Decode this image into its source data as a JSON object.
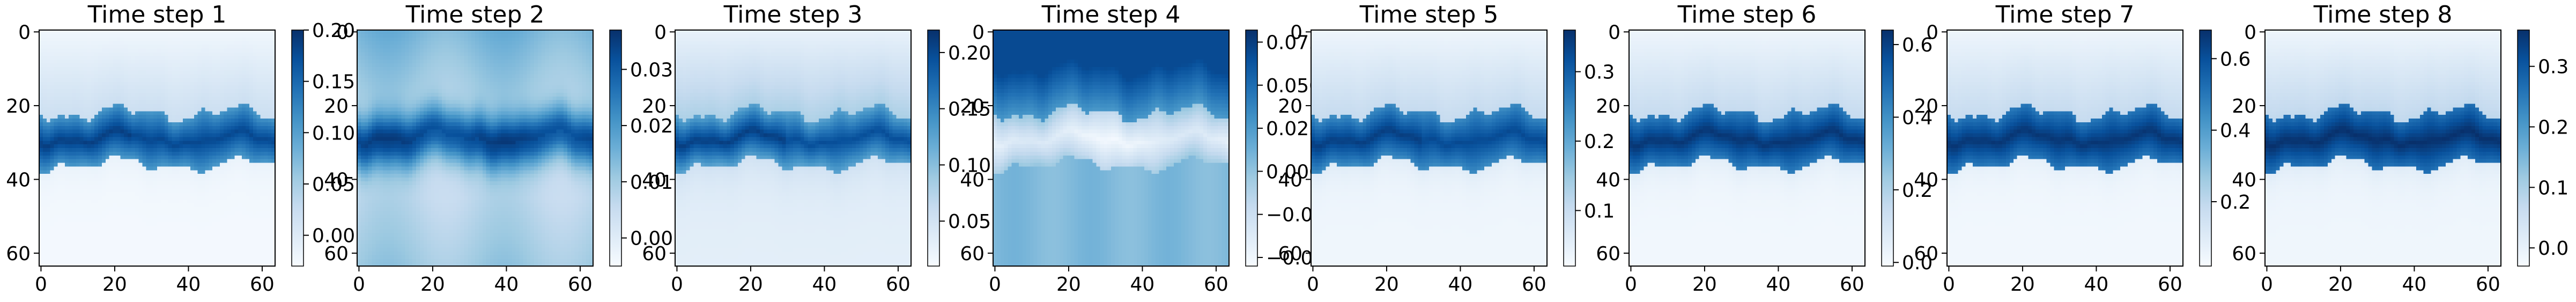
{
  "chart_data": [
    {
      "type": "heatmap",
      "title": "Time step 1",
      "xticks": [
        0,
        20,
        40,
        60
      ],
      "yticks": [
        0,
        20,
        40,
        60
      ],
      "x_range": [
        0,
        63
      ],
      "y_range": [
        0,
        63
      ],
      "colormap": "Blues",
      "colorbar": {
        "ticks": [
          "0.00",
          "0.05",
          "0.10",
          "0.15",
          "0.20"
        ],
        "range": [
          -0.03,
          0.2
        ]
      }
    },
    {
      "type": "heatmap",
      "title": "Time step 2",
      "xticks": [
        0,
        20,
        40,
        60
      ],
      "yticks": [
        0,
        20,
        40,
        60
      ],
      "x_range": [
        0,
        63
      ],
      "y_range": [
        0,
        63
      ],
      "colormap": "Blues",
      "colorbar": {
        "ticks": [
          "0.00",
          "0.01",
          "0.02",
          "0.03"
        ],
        "range": [
          -0.005,
          0.037
        ]
      }
    },
    {
      "type": "heatmap",
      "title": "Time step 3",
      "xticks": [
        0,
        20,
        40,
        60
      ],
      "yticks": [
        0,
        20,
        40,
        60
      ],
      "x_range": [
        0,
        63
      ],
      "y_range": [
        0,
        63
      ],
      "colormap": "Blues",
      "colorbar": {
        "ticks": [
          "0.05",
          "0.10",
          "0.15",
          "0.20"
        ],
        "range": [
          0.01,
          0.22
        ]
      }
    },
    {
      "type": "heatmap",
      "title": "Time step 4",
      "xticks": [
        0,
        20,
        40,
        60
      ],
      "yticks": [
        0,
        20,
        40,
        60
      ],
      "x_range": [
        0,
        63
      ],
      "y_range": [
        0,
        63
      ],
      "colormap": "Blues",
      "colorbar": {
        "ticks": [
          "−0.050",
          "−0.025",
          "0.000",
          "0.025",
          "0.050",
          "0.075"
        ],
        "range": [
          -0.055,
          0.082
        ]
      }
    },
    {
      "type": "heatmap",
      "title": "Time step 5",
      "xticks": [
        0,
        20,
        40,
        60
      ],
      "yticks": [
        0,
        20,
        40,
        60
      ],
      "x_range": [
        0,
        63
      ],
      "y_range": [
        0,
        63
      ],
      "colormap": "Blues",
      "colorbar": {
        "ticks": [
          "0.1",
          "0.2",
          "0.3"
        ],
        "range": [
          0.02,
          0.36
        ]
      }
    },
    {
      "type": "heatmap",
      "title": "Time step 6",
      "xticks": [
        0,
        20,
        40,
        60
      ],
      "yticks": [
        0,
        20,
        40,
        60
      ],
      "x_range": [
        0,
        63
      ],
      "y_range": [
        0,
        63
      ],
      "colormap": "Blues",
      "colorbar": {
        "ticks": [
          "0.0",
          "0.2",
          "0.4",
          "0.6"
        ],
        "range": [
          -0.01,
          0.64
        ]
      }
    },
    {
      "type": "heatmap",
      "title": "Time step 7",
      "xticks": [
        0,
        20,
        40,
        60
      ],
      "yticks": [
        0,
        20,
        40,
        60
      ],
      "x_range": [
        0,
        63
      ],
      "y_range": [
        0,
        63
      ],
      "colormap": "Blues",
      "colorbar": {
        "ticks": [
          "0.2",
          "0.4",
          "0.6"
        ],
        "range": [
          0.02,
          0.68
        ]
      }
    },
    {
      "type": "heatmap",
      "title": "Time step 8",
      "xticks": [
        0,
        20,
        40,
        60
      ],
      "yticks": [
        0,
        20,
        40,
        60
      ],
      "x_range": [
        0,
        63
      ],
      "y_range": [
        0,
        63
      ],
      "colormap": "Blues",
      "colorbar": {
        "ticks": [
          "0.0",
          "0.1",
          "0.2",
          "0.3"
        ],
        "range": [
          -0.03,
          0.36
        ]
      }
    }
  ]
}
